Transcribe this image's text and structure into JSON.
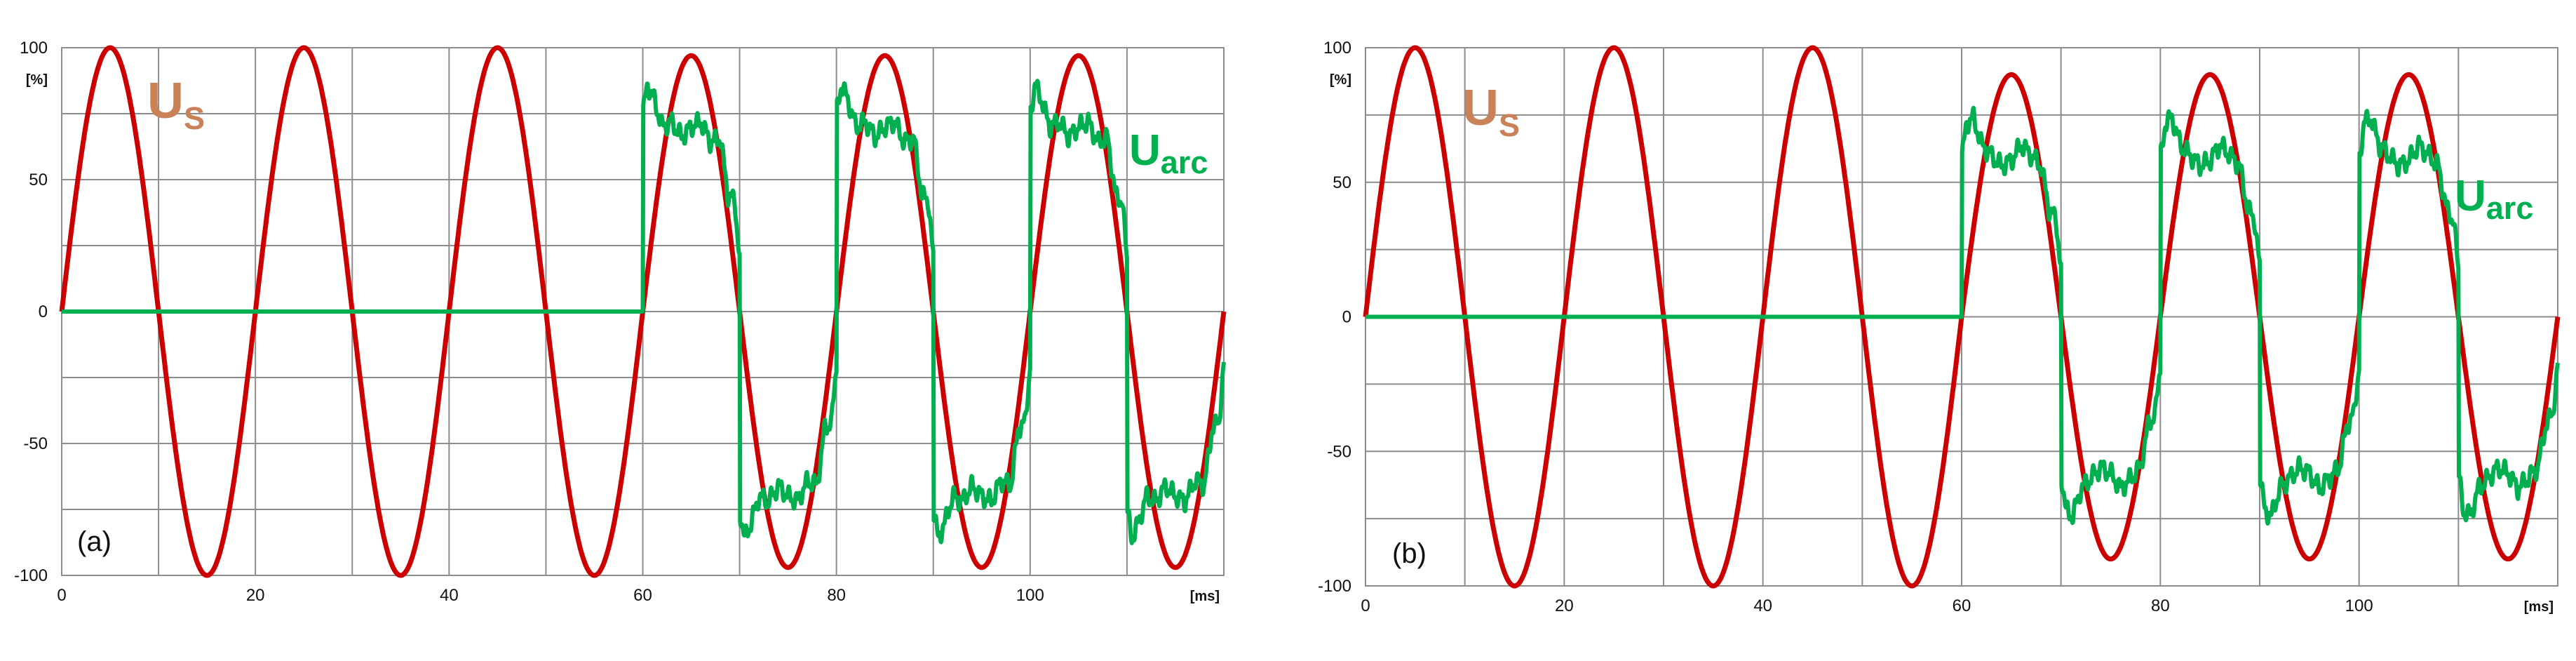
{
  "chart_data": [
    {
      "type": "line",
      "panel_label": "(a)",
      "x_unit": "[ms]",
      "y_unit": "[%]",
      "xlim": [
        0,
        120
      ],
      "ylim": [
        -100,
        100
      ],
      "x_ticks": [
        0,
        20,
        40,
        60,
        80,
        100
      ],
      "y_ticks": [
        100,
        50,
        0,
        -50,
        -100
      ],
      "grid": true,
      "series": [
        {
          "name_main": "U",
          "name_sub": "S",
          "color": "#cc0000",
          "kind": "sine",
          "amplitude": 100,
          "period_ms": 20,
          "phase": 0,
          "amplitude_after_arc": 97,
          "arc_start_ms": 60
        },
        {
          "name_main": "U",
          "name_sub": "arc",
          "color": "#00b050",
          "kind": "arc",
          "arc_start_ms": 60,
          "half_period_ms": 10,
          "half_cycle_shape": [
            [
              0.0,
              75
            ],
            [
              0.05,
              86
            ],
            [
              0.12,
              80
            ],
            [
              0.2,
              70
            ],
            [
              0.3,
              72
            ],
            [
              0.4,
              66
            ],
            [
              0.5,
              70
            ],
            [
              0.6,
              72
            ],
            [
              0.7,
              64
            ],
            [
              0.8,
              66
            ],
            [
              0.88,
              44
            ],
            [
              0.95,
              42
            ],
            [
              1.0,
              20
            ]
          ]
        }
      ]
    },
    {
      "type": "line",
      "panel_label": "(b)",
      "x_unit": "[ms]",
      "y_unit": "[%]",
      "xlim": [
        0,
        120
      ],
      "ylim": [
        -100,
        100
      ],
      "x_ticks": [
        0,
        20,
        40,
        60,
        80,
        100
      ],
      "y_ticks": [
        100,
        50,
        0,
        -50,
        -100
      ],
      "grid": true,
      "series": [
        {
          "name_main": "U",
          "name_sub": "S",
          "color": "#cc0000",
          "kind": "sine",
          "amplitude": 100,
          "period_ms": 20,
          "phase": 0,
          "amplitude_after_arc": 90,
          "arc_start_ms": 60
        },
        {
          "name_main": "U",
          "name_sub": "arc",
          "color": "#00b050",
          "kind": "arc",
          "arc_start_ms": 60,
          "half_period_ms": 10,
          "half_cycle_shape": [
            [
              0.0,
              58
            ],
            [
              0.05,
              72
            ],
            [
              0.12,
              74
            ],
            [
              0.2,
              64
            ],
            [
              0.3,
              60
            ],
            [
              0.4,
              56
            ],
            [
              0.5,
              58
            ],
            [
              0.6,
              64
            ],
            [
              0.7,
              60
            ],
            [
              0.8,
              56
            ],
            [
              0.88,
              40
            ],
            [
              0.95,
              36
            ],
            [
              1.0,
              18
            ]
          ]
        }
      ]
    }
  ]
}
